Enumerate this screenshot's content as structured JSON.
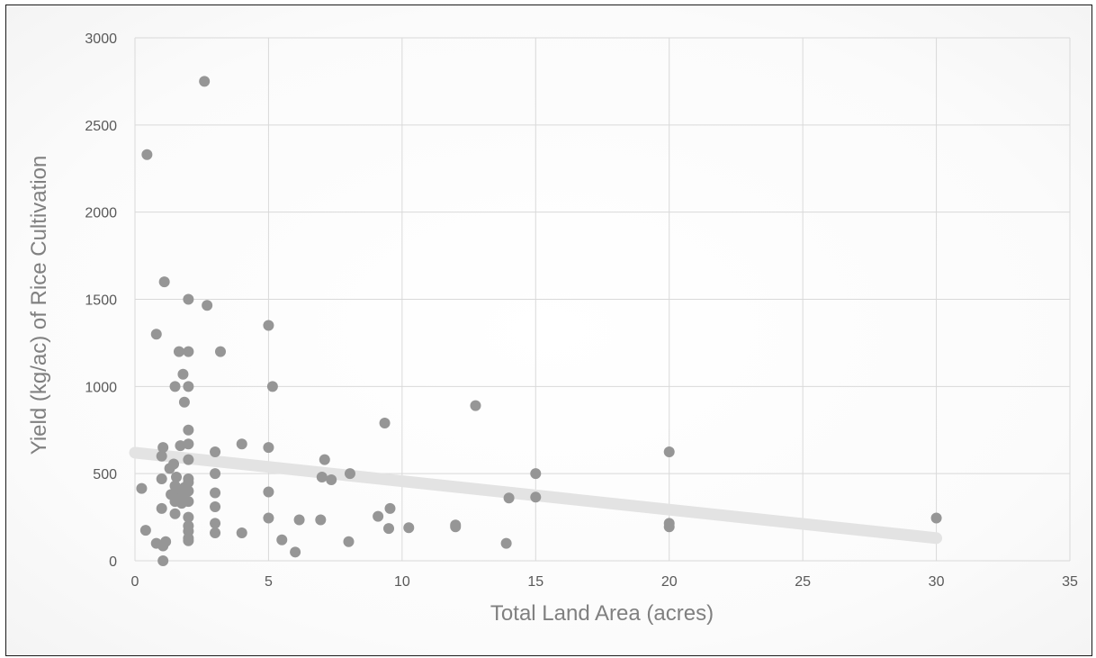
{
  "chart_data": {
    "type": "scatter",
    "title": "",
    "xlabel": "Total Land Area (acres)",
    "ylabel": "Yield (kg/ac) of Rice Cultivation",
    "xlim": [
      0,
      35
    ],
    "ylim": [
      0,
      3000
    ],
    "x_ticks": [
      "0",
      "5",
      "10",
      "15",
      "20",
      "25",
      "30",
      "35"
    ],
    "y_ticks": [
      "0",
      "500",
      "1000",
      "1500",
      "2000",
      "2500",
      "3000"
    ],
    "grid": true,
    "legend": "none",
    "colors": {
      "points": "#969696",
      "trendline": "#e3e3e3",
      "grid": "#d9d9d9"
    },
    "trendline": {
      "type": "linear",
      "x": [
        0,
        30
      ],
      "y": [
        620,
        130
      ]
    },
    "points": [
      {
        "x": 0.25,
        "y": 415
      },
      {
        "x": 0.4,
        "y": 175
      },
      {
        "x": 0.45,
        "y": 2330
      },
      {
        "x": 0.8,
        "y": 100
      },
      {
        "x": 0.8,
        "y": 1300
      },
      {
        "x": 1.0,
        "y": 600
      },
      {
        "x": 1.0,
        "y": 300
      },
      {
        "x": 1.0,
        "y": 470
      },
      {
        "x": 1.05,
        "y": 650
      },
      {
        "x": 1.05,
        "y": 85
      },
      {
        "x": 1.05,
        "y": 0
      },
      {
        "x": 1.1,
        "y": 1600
      },
      {
        "x": 1.15,
        "y": 110
      },
      {
        "x": 1.3,
        "y": 530
      },
      {
        "x": 1.35,
        "y": 380
      },
      {
        "x": 1.45,
        "y": 555
      },
      {
        "x": 1.5,
        "y": 270
      },
      {
        "x": 1.5,
        "y": 340
      },
      {
        "x": 1.5,
        "y": 430
      },
      {
        "x": 1.5,
        "y": 1000
      },
      {
        "x": 1.55,
        "y": 480
      },
      {
        "x": 1.6,
        "y": 360
      },
      {
        "x": 1.65,
        "y": 1200
      },
      {
        "x": 1.7,
        "y": 660
      },
      {
        "x": 1.7,
        "y": 400
      },
      {
        "x": 1.75,
        "y": 330
      },
      {
        "x": 1.8,
        "y": 380
      },
      {
        "x": 1.8,
        "y": 1070
      },
      {
        "x": 1.85,
        "y": 910
      },
      {
        "x": 1.85,
        "y": 420
      },
      {
        "x": 2.0,
        "y": 1500
      },
      {
        "x": 2.0,
        "y": 1200
      },
      {
        "x": 2.0,
        "y": 1000
      },
      {
        "x": 2.0,
        "y": 750
      },
      {
        "x": 2.0,
        "y": 670
      },
      {
        "x": 2.0,
        "y": 580
      },
      {
        "x": 2.0,
        "y": 470
      },
      {
        "x": 2.0,
        "y": 450
      },
      {
        "x": 2.0,
        "y": 400
      },
      {
        "x": 2.0,
        "y": 340
      },
      {
        "x": 2.0,
        "y": 250
      },
      {
        "x": 2.0,
        "y": 200
      },
      {
        "x": 2.0,
        "y": 170
      },
      {
        "x": 2.0,
        "y": 130
      },
      {
        "x": 2.0,
        "y": 115
      },
      {
        "x": 2.6,
        "y": 2750
      },
      {
        "x": 2.7,
        "y": 1465
      },
      {
        "x": 3.0,
        "y": 625
      },
      {
        "x": 3.0,
        "y": 500
      },
      {
        "x": 3.0,
        "y": 390
      },
      {
        "x": 3.0,
        "y": 310
      },
      {
        "x": 3.0,
        "y": 215
      },
      {
        "x": 3.0,
        "y": 160
      },
      {
        "x": 3.2,
        "y": 1200
      },
      {
        "x": 4.0,
        "y": 670
      },
      {
        "x": 4.0,
        "y": 160
      },
      {
        "x": 5.0,
        "y": 1350
      },
      {
        "x": 5.0,
        "y": 650
      },
      {
        "x": 5.0,
        "y": 395
      },
      {
        "x": 5.0,
        "y": 245
      },
      {
        "x": 5.15,
        "y": 1000
      },
      {
        "x": 5.5,
        "y": 120
      },
      {
        "x": 6.0,
        "y": 50
      },
      {
        "x": 6.15,
        "y": 235
      },
      {
        "x": 6.95,
        "y": 235
      },
      {
        "x": 7.0,
        "y": 480
      },
      {
        "x": 7.1,
        "y": 580
      },
      {
        "x": 7.35,
        "y": 465
      },
      {
        "x": 8.0,
        "y": 110
      },
      {
        "x": 8.05,
        "y": 500
      },
      {
        "x": 9.1,
        "y": 255
      },
      {
        "x": 9.35,
        "y": 790
      },
      {
        "x": 9.5,
        "y": 185
      },
      {
        "x": 9.55,
        "y": 300
      },
      {
        "x": 10.25,
        "y": 190
      },
      {
        "x": 12.0,
        "y": 195
      },
      {
        "x": 12.0,
        "y": 205
      },
      {
        "x": 12.75,
        "y": 890
      },
      {
        "x": 13.9,
        "y": 100
      },
      {
        "x": 14.0,
        "y": 360
      },
      {
        "x": 15.0,
        "y": 500
      },
      {
        "x": 15.0,
        "y": 365
      },
      {
        "x": 20.0,
        "y": 625
      },
      {
        "x": 20.0,
        "y": 215
      },
      {
        "x": 20.0,
        "y": 195
      },
      {
        "x": 30.0,
        "y": 245
      }
    ]
  }
}
